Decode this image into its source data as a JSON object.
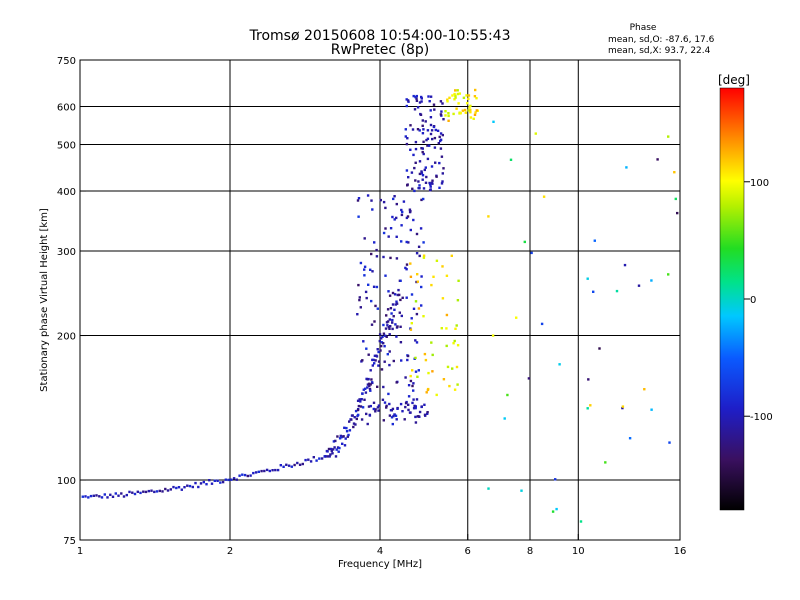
{
  "title_line1": "Tromsø 20150608 10:54:00-10:55:43",
  "title_line2": "RwPretec (8p)",
  "phase_header": "Phase",
  "phase_line_o": "mean, sd,O: -87.6, 17.6",
  "phase_line_x": "mean, sd,X: 93.7, 22.4",
  "colorbar": {
    "unit": "[deg]",
    "range": [
      -180,
      180
    ],
    "ticks": [
      {
        "v": 100,
        "label": "100"
      },
      {
        "v": 0,
        "label": "0"
      },
      {
        "v": -100,
        "label": "-100"
      }
    ]
  },
  "chart_data": {
    "type": "scatter",
    "xlabel": "Frequency [MHz]",
    "ylabel": "Stationary phase Virtual Height [km]",
    "xscale": "log",
    "yscale": "log",
    "xlim": [
      1,
      16
    ],
    "ylim": [
      75,
      750
    ],
    "grid": true,
    "x_ticks": [
      {
        "v": 1,
        "label": "1"
      },
      {
        "v": 2,
        "label": "2"
      },
      {
        "v": 4,
        "label": "4"
      },
      {
        "v": 6,
        "label": "6"
      },
      {
        "v": 8,
        "label": "8"
      },
      {
        "v": 10,
        "label": "10"
      },
      {
        "v": 16,
        "label": "16"
      }
    ],
    "x_grid": [
      2,
      4,
      6,
      8,
      10
    ],
    "y_ticks": [
      {
        "v": 75,
        "label": "75"
      },
      {
        "v": 100,
        "label": "100"
      },
      {
        "v": 200,
        "label": "200"
      },
      {
        "v": 300,
        "label": "300"
      },
      {
        "v": 400,
        "label": "400"
      },
      {
        "v": 500,
        "label": "500"
      },
      {
        "v": 600,
        "label": "600"
      },
      {
        "v": 750,
        "label": "750"
      }
    ],
    "y_grid": [
      100,
      200,
      300,
      400,
      500,
      600
    ],
    "point_groups": [
      {
        "name": "o-trace-lower",
        "x_range": [
          1.0,
          3.1
        ],
        "y_range": [
          92,
          112
        ],
        "phase_range": [
          -125,
          -80
        ],
        "count": 90,
        "shape": "curve"
      },
      {
        "name": "o-trace-rise",
        "x_range": [
          3.1,
          4.4
        ],
        "y_range": [
          112,
          260
        ],
        "phase_range": [
          -130,
          -80
        ],
        "count": 110,
        "shape": "curve"
      },
      {
        "name": "o-spread-mid",
        "x_range": [
          3.6,
          4.9
        ],
        "y_range": [
          130,
          400
        ],
        "phase_range": [
          -135,
          -75
        ],
        "count": 170,
        "shape": "cloud"
      },
      {
        "name": "o-trace-upper",
        "x_range": [
          4.5,
          5.4
        ],
        "y_range": [
          400,
          640
        ],
        "phase_range": [
          -130,
          -85
        ],
        "count": 120,
        "shape": "cloud"
      },
      {
        "name": "o-trace-ledge",
        "x_range": [
          3.8,
          5.0
        ],
        "y_range": [
          135,
          145
        ],
        "phase_range": [
          -130,
          -90
        ],
        "count": 45,
        "shape": "cloud"
      },
      {
        "name": "x-trace-upper",
        "x_range": [
          5.4,
          6.3
        ],
        "y_range": [
          560,
          650
        ],
        "phase_range": [
          80,
          130
        ],
        "count": 45,
        "shape": "cloud"
      },
      {
        "name": "x-trace-mid",
        "x_range": [
          4.6,
          5.8
        ],
        "y_range": [
          150,
          300
        ],
        "phase_range": [
          70,
          130
        ],
        "count": 50,
        "shape": "cloud"
      },
      {
        "name": "scattered-high-freq",
        "x_range": [
          6.5,
          16.0
        ],
        "y_range": [
          80,
          620
        ],
        "phase_range": [
          -150,
          130
        ],
        "count": 45,
        "shape": "sparse"
      }
    ]
  }
}
